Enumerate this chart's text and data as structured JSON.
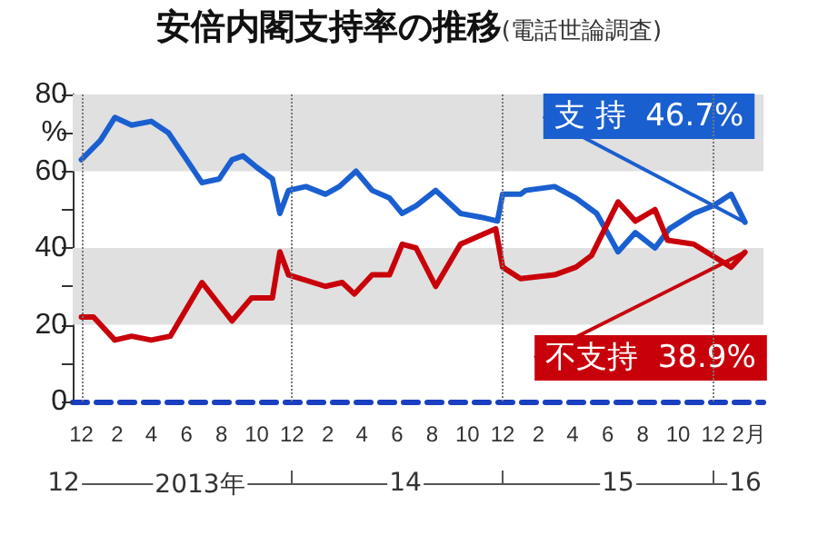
{
  "chart_data": {
    "type": "line",
    "title": "安倍内閣支持率の推移",
    "subtitle": "(電話世論調査)",
    "annotations": [
      "12",
      "2013年",
      "14",
      "15",
      "16"
    ],
    "series": [
      {
        "name": "支 持",
        "color": "#1a5fd0",
        "x": [
          "2012-12-01",
          "2013-01-03",
          "2013-01-28",
          "2013-02-26",
          "2013-04-01",
          "2013-05-01",
          "2013-05-28",
          "2013-06-28",
          "2013-07-28",
          "2013-08-19",
          "2013-09-07",
          "2013-10-01",
          "2013-10-28",
          "2013-11-10",
          "2013-11-25",
          "2013-12-25",
          "2014-01-28",
          "2014-02-21",
          "2014-03-22",
          "2014-04-19",
          "2014-05-19",
          "2014-06-10",
          "2014-07-04",
          "2014-08-07",
          "2014-09-19",
          "2014-10-25",
          "2014-11-22",
          "2014-12-01",
          "2015-01-01",
          "2015-01-10",
          "2015-03-01",
          "2015-04-07",
          "2015-05-13",
          "2015-06-19",
          "2015-07-19",
          "2015-08-22",
          "2015-09-16",
          "2015-10-28",
          "2015-12-01",
          "2016-01-01",
          "2016-01-25"
        ],
        "values": [
          63,
          68,
          74,
          72,
          73,
          70,
          64,
          57,
          58,
          63,
          64,
          61,
          58,
          49,
          55,
          56,
          54,
          56,
          60,
          55,
          53,
          49,
          51,
          55,
          49,
          48,
          47,
          54,
          54,
          55,
          56,
          53,
          49,
          39,
          44,
          40,
          45,
          49,
          51,
          54,
          46.7
        ],
        "value_labels": [
          null,
          null,
          null,
          null,
          null,
          null,
          null,
          null,
          null,
          null,
          null,
          null,
          null,
          null,
          null,
          null,
          null,
          null,
          null,
          null,
          null,
          null,
          null,
          null,
          null,
          null,
          null,
          null,
          null,
          null,
          null,
          null,
          null,
          null,
          null,
          null,
          null,
          null,
          null,
          null,
          "46.7%"
        ]
      },
      {
        "name": "不支持",
        "color": "#c8000a",
        "x": [
          "2012-12-01",
          "2012-12-22",
          "2013-01-28",
          "2013-02-26",
          "2013-04-01",
          "2013-05-04",
          "2013-06-28",
          "2013-08-19",
          "2013-09-22",
          "2013-10-28",
          "2013-11-10",
          "2013-11-25",
          "2014-01-28",
          "2014-02-26",
          "2014-03-19",
          "2014-04-19",
          "2014-05-19",
          "2014-06-10",
          "2014-07-04",
          "2014-08-07",
          "2014-09-19",
          "2014-11-19",
          "2014-12-01",
          "2015-01-01",
          "2015-03-01",
          "2015-04-07",
          "2015-05-04",
          "2015-06-19",
          "2015-07-19",
          "2015-08-22",
          "2015-09-13",
          "2015-10-28",
          "2016-01-01",
          "2016-01-25"
        ],
        "values": [
          22,
          22,
          16,
          17,
          16,
          17,
          31,
          21,
          27,
          27,
          39,
          33,
          30,
          31,
          28,
          33,
          33,
          41,
          40,
          30,
          41,
          45,
          35,
          32,
          33,
          35,
          38,
          52,
          47,
          50,
          42,
          41,
          35,
          38.9
        ],
        "value_labels": [
          null,
          null,
          null,
          null,
          null,
          null,
          null,
          null,
          null,
          null,
          null,
          null,
          null,
          null,
          null,
          null,
          null,
          null,
          null,
          null,
          null,
          null,
          null,
          null,
          null,
          null,
          null,
          null,
          null,
          null,
          null,
          null,
          null,
          "38.9%"
        ]
      }
    ],
    "xlim": [
      "2012-11-16",
      "2016-02-26"
    ],
    "xticks": [
      {
        "value": "2012-12-01",
        "label": "12"
      },
      {
        "value": "2013-02-01",
        "label": "2"
      },
      {
        "value": "2013-04-01",
        "label": "4"
      },
      {
        "value": "2013-06-01",
        "label": "6"
      },
      {
        "value": "2013-08-01",
        "label": "8"
      },
      {
        "value": "2013-10-01",
        "label": "10"
      },
      {
        "value": "2013-12-01",
        "label": "12"
      },
      {
        "value": "2014-02-01",
        "label": "2"
      },
      {
        "value": "2014-04-01",
        "label": "4"
      },
      {
        "value": "2014-06-01",
        "label": "6"
      },
      {
        "value": "2014-08-01",
        "label": "8"
      },
      {
        "value": "2014-10-01",
        "label": "10"
      },
      {
        "value": "2014-12-01",
        "label": "12"
      },
      {
        "value": "2015-02-01",
        "label": "2"
      },
      {
        "value": "2015-04-01",
        "label": "4"
      },
      {
        "value": "2015-06-01",
        "label": "6"
      },
      {
        "value": "2015-08-01",
        "label": "8"
      },
      {
        "value": "2015-10-01",
        "label": "10"
      },
      {
        "value": "2015-12-01",
        "label": "12"
      },
      {
        "value": "2016-02-01",
        "label": "2月"
      }
    ],
    "ylim": [
      0,
      80
    ],
    "yticks": [
      0,
      {
        "value": 10,
        "label": null
      },
      20,
      {
        "value": 30,
        "label": null
      },
      40,
      {
        "value": 50,
        "label": null
      },
      60,
      {
        "value": 70,
        "label": "%"
      },
      80
    ],
    "ref_lines": [
      {
        "axis": "x",
        "value": "2012-12-01",
        "color": "#777777",
        "line_style": "dotted"
      },
      {
        "axis": "x",
        "value": "2013-12-01",
        "color": "#777777",
        "line_style": "dotted"
      },
      {
        "axis": "x",
        "value": "2014-12-01",
        "color": "#777777",
        "line_style": "dotted"
      },
      {
        "axis": "x",
        "value": "2015-12-01",
        "color": "#777777",
        "line_style": "dotted"
      }
    ],
    "bands": [
      {
        "axis": "y",
        "from": 20,
        "to": 40,
        "color": "#e0e0e0"
      },
      {
        "axis": "y",
        "from": 60,
        "to": 80,
        "color": "#e0e0e0"
      }
    ],
    "grid": false,
    "legend": false,
    "marker": "none",
    "line_style": "solid"
  }
}
